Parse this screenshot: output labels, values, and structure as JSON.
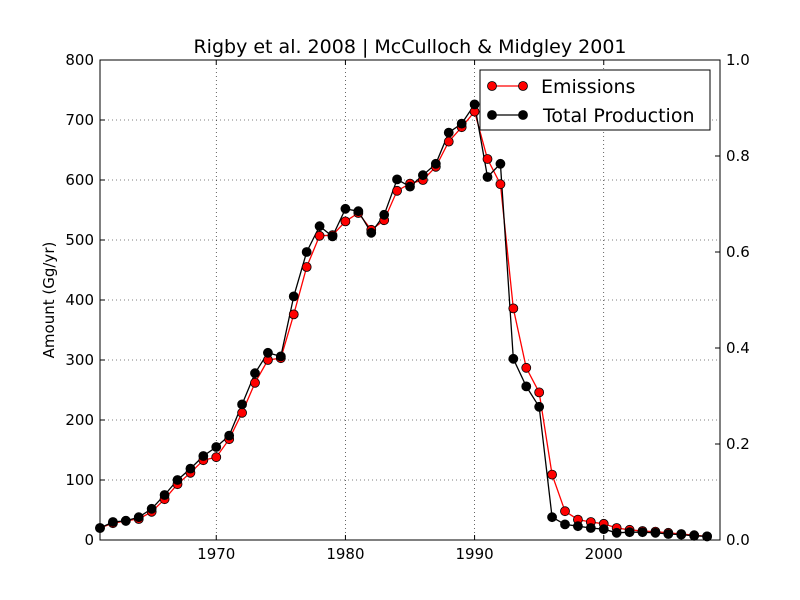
{
  "chart_data": {
    "type": "line",
    "title": "Rigby et al. 2008 | McCulloch & Midgley 2001",
    "xlabel": "",
    "ylabel": "Amount (Gg/yr)",
    "xlim": [
      1961,
      2009
    ],
    "ylim": [
      0,
      800
    ],
    "y2lim": [
      0,
      1.0
    ],
    "x_ticks": [
      1970,
      1980,
      1990,
      2000
    ],
    "y_ticks": [
      0,
      100,
      200,
      300,
      400,
      500,
      600,
      700,
      800
    ],
    "y2_ticks": [
      "0.0",
      "0.2",
      "0.4",
      "0.6",
      "0.8",
      "1.0"
    ],
    "grid": true,
    "legend_position": "top-right",
    "series": [
      {
        "name": "Emissions",
        "color": "#ff0000",
        "x": [
          1961,
          1962,
          1963,
          1964,
          1965,
          1966,
          1967,
          1968,
          1969,
          1970,
          1971,
          1972,
          1973,
          1974,
          1975,
          1976,
          1977,
          1978,
          1979,
          1980,
          1981,
          1982,
          1983,
          1984,
          1985,
          1986,
          1987,
          1988,
          1989,
          1990,
          1991,
          1992,
          1993,
          1994,
          1995,
          1996,
          1997,
          1998,
          1999,
          2000,
          2001,
          2002,
          2003,
          2004,
          2005,
          2006,
          2007,
          2008
        ],
        "y": [
          20,
          28,
          32,
          35,
          47,
          68,
          93,
          112,
          133,
          138,
          168,
          212,
          262,
          300,
          303,
          376,
          455,
          507,
          508,
          531,
          545,
          517,
          533,
          582,
          594,
          600,
          622,
          664,
          688,
          714,
          635,
          593,
          386,
          287,
          246,
          109,
          48,
          34,
          30,
          27,
          20,
          17,
          15,
          14,
          12,
          10,
          8,
          6
        ]
      },
      {
        "name": "Total Production",
        "color": "#000000",
        "x": [
          1961,
          1962,
          1963,
          1964,
          1965,
          1966,
          1967,
          1968,
          1969,
          1970,
          1971,
          1972,
          1973,
          1974,
          1975,
          1976,
          1977,
          1978,
          1979,
          1980,
          1981,
          1982,
          1983,
          1984,
          1985,
          1986,
          1987,
          1988,
          1989,
          1990,
          1991,
          1992,
          1993,
          1994,
          1995,
          1996,
          1997,
          1998,
          1999,
          2000,
          2001,
          2002,
          2003,
          2004,
          2005,
          2006,
          2007,
          2008
        ],
        "y": [
          20,
          30,
          32,
          38,
          52,
          75,
          100,
          119,
          140,
          155,
          174,
          226,
          278,
          312,
          306,
          406,
          480,
          523,
          506,
          552,
          548,
          512,
          542,
          601,
          589,
          608,
          627,
          679,
          694,
          726,
          605,
          627,
          302,
          256,
          222,
          38,
          26,
          23,
          20,
          18,
          12,
          13,
          13,
          12,
          10,
          9,
          7,
          6
        ]
      }
    ]
  }
}
